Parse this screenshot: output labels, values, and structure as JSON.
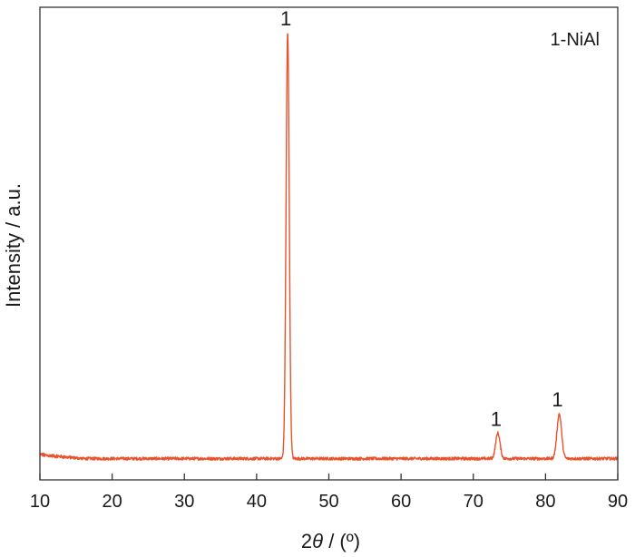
{
  "chart_data": {
    "type": "line",
    "xlabel_prefix": "2",
    "xlabel_symbol": "θ",
    "xlabel_suffix": " / (º)",
    "ylabel": "Intensity / a.u.",
    "xlim": [
      10,
      90
    ],
    "xticks": [
      "10",
      "20",
      "30",
      "40",
      "50",
      "60",
      "70",
      "80",
      "90"
    ],
    "yticks_shown": false,
    "legend": {
      "text": "1-NiAl",
      "placement": "top-right"
    },
    "series": [
      {
        "color": "#e8532b",
        "baseline": 1.0,
        "noise": 0.35,
        "low_angle_rise": {
          "from": 10,
          "to": 16,
          "extra": 0.9
        },
        "peaks": [
          {
            "x": 44.3,
            "height": 100,
            "width": 0.22,
            "label": "1"
          },
          {
            "x": 73.4,
            "height": 6.0,
            "width": 0.3,
            "label": "1"
          },
          {
            "x": 81.9,
            "height": 10.5,
            "width": 0.32,
            "label": "1"
          }
        ]
      }
    ],
    "ylim": [
      -4,
      107
    ]
  }
}
